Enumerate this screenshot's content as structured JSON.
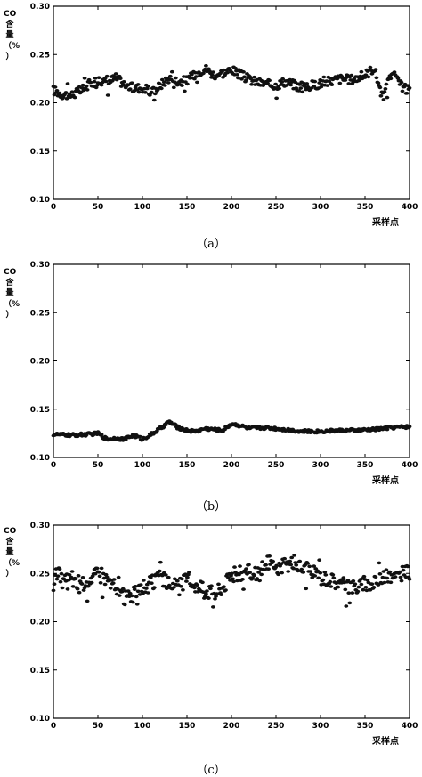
{
  "chart_data": [
    {
      "type": "scatter",
      "ylabel": "CO\n含\n量\n（%\n）",
      "xlabel": "采样点",
      "caption": "（a）",
      "xlim": [
        0,
        400
      ],
      "ylim": [
        0.1,
        0.3
      ],
      "xticks": [
        "0",
        "50",
        "100",
        "150",
        "200",
        "250",
        "300",
        "350",
        "400"
      ],
      "yticks": [
        "0.10",
        "0.15",
        "0.20",
        "0.25",
        "0.30"
      ],
      "grid": false,
      "n_points": 400,
      "trend": [
        [
          0,
          0.213
        ],
        [
          10,
          0.209
        ],
        [
          20,
          0.208
        ],
        [
          30,
          0.212
        ],
        [
          40,
          0.219
        ],
        [
          50,
          0.224
        ],
        [
          60,
          0.221
        ],
        [
          70,
          0.226
        ],
        [
          80,
          0.219
        ],
        [
          90,
          0.215
        ],
        [
          100,
          0.216
        ],
        [
          110,
          0.21
        ],
        [
          120,
          0.218
        ],
        [
          130,
          0.226
        ],
        [
          140,
          0.222
        ],
        [
          150,
          0.223
        ],
        [
          160,
          0.23
        ],
        [
          170,
          0.236
        ],
        [
          180,
          0.229
        ],
        [
          190,
          0.231
        ],
        [
          200,
          0.234
        ],
        [
          210,
          0.229
        ],
        [
          220,
          0.224
        ],
        [
          230,
          0.221
        ],
        [
          240,
          0.219
        ],
        [
          250,
          0.218
        ],
        [
          260,
          0.222
        ],
        [
          270,
          0.219
        ],
        [
          280,
          0.215
        ],
        [
          290,
          0.218
        ],
        [
          300,
          0.22
        ],
        [
          310,
          0.222
        ],
        [
          320,
          0.225
        ],
        [
          330,
          0.224
        ],
        [
          340,
          0.225
        ],
        [
          350,
          0.229
        ],
        [
          360,
          0.236
        ],
        [
          365,
          0.221
        ],
        [
          370,
          0.205
        ],
        [
          380,
          0.231
        ],
        [
          390,
          0.218
        ],
        [
          400,
          0.212
        ]
      ],
      "spread": 0.005
    },
    {
      "type": "scatter",
      "ylabel": "CO\n含\n量\n（%\n）",
      "xlabel": "采样点",
      "caption": "（b）",
      "xlim": [
        0,
        400
      ],
      "ylim": [
        0.1,
        0.3
      ],
      "xticks": [
        "0",
        "50",
        "100",
        "150",
        "200",
        "250",
        "300",
        "350",
        "400"
      ],
      "yticks": [
        "0.10",
        "0.15",
        "0.20",
        "0.25",
        "0.30"
      ],
      "grid": false,
      "n_points": 400,
      "trend": [
        [
          0,
          0.124
        ],
        [
          20,
          0.123
        ],
        [
          40,
          0.124
        ],
        [
          50,
          0.125
        ],
        [
          60,
          0.119
        ],
        [
          70,
          0.12
        ],
        [
          80,
          0.119
        ],
        [
          90,
          0.123
        ],
        [
          100,
          0.119
        ],
        [
          110,
          0.124
        ],
        [
          120,
          0.13
        ],
        [
          130,
          0.137
        ],
        [
          140,
          0.131
        ],
        [
          150,
          0.128
        ],
        [
          160,
          0.127
        ],
        [
          170,
          0.13
        ],
        [
          180,
          0.129
        ],
        [
          190,
          0.128
        ],
        [
          200,
          0.135
        ],
        [
          210,
          0.133
        ],
        [
          220,
          0.13
        ],
        [
          240,
          0.131
        ],
        [
          260,
          0.129
        ],
        [
          280,
          0.127
        ],
        [
          300,
          0.127
        ],
        [
          320,
          0.128
        ],
        [
          340,
          0.128
        ],
        [
          360,
          0.129
        ],
        [
          380,
          0.131
        ],
        [
          400,
          0.132
        ]
      ],
      "spread": 0.0018
    },
    {
      "type": "scatter",
      "ylabel": "CO\n含\n量\n（%\n）",
      "xlabel": "采样点",
      "caption": "（c）",
      "xlim": [
        0,
        400
      ],
      "ylim": [
        0.1,
        0.3
      ],
      "xticks": [
        "0",
        "50",
        "100",
        "150",
        "200",
        "250",
        "300",
        "350",
        "400"
      ],
      "yticks": [
        "0.10",
        "0.15",
        "0.20",
        "0.25",
        "0.30"
      ],
      "grid": false,
      "n_points": 400,
      "trend": [
        [
          0,
          0.235
        ],
        [
          5,
          0.255
        ],
        [
          10,
          0.24
        ],
        [
          15,
          0.245
        ],
        [
          20,
          0.243
        ],
        [
          30,
          0.235
        ],
        [
          40,
          0.245
        ],
        [
          50,
          0.25
        ],
        [
          60,
          0.245
        ],
        [
          70,
          0.235
        ],
        [
          80,
          0.225
        ],
        [
          90,
          0.228
        ],
        [
          100,
          0.235
        ],
        [
          110,
          0.24
        ],
        [
          120,
          0.245
        ],
        [
          130,
          0.24
        ],
        [
          140,
          0.236
        ],
        [
          150,
          0.245
        ],
        [
          160,
          0.238
        ],
        [
          170,
          0.233
        ],
        [
          180,
          0.23
        ],
        [
          190,
          0.236
        ],
        [
          200,
          0.248
        ],
        [
          210,
          0.25
        ],
        [
          220,
          0.252
        ],
        [
          230,
          0.248
        ],
        [
          240,
          0.262
        ],
        [
          250,
          0.255
        ],
        [
          260,
          0.258
        ],
        [
          270,
          0.262
        ],
        [
          280,
          0.255
        ],
        [
          290,
          0.252
        ],
        [
          300,
          0.246
        ],
        [
          310,
          0.245
        ],
        [
          320,
          0.24
        ],
        [
          330,
          0.238
        ],
        [
          340,
          0.236
        ],
        [
          350,
          0.24
        ],
        [
          360,
          0.238
        ],
        [
          370,
          0.248
        ],
        [
          380,
          0.245
        ],
        [
          390,
          0.249
        ],
        [
          400,
          0.252
        ]
      ],
      "spread": 0.008
    }
  ]
}
